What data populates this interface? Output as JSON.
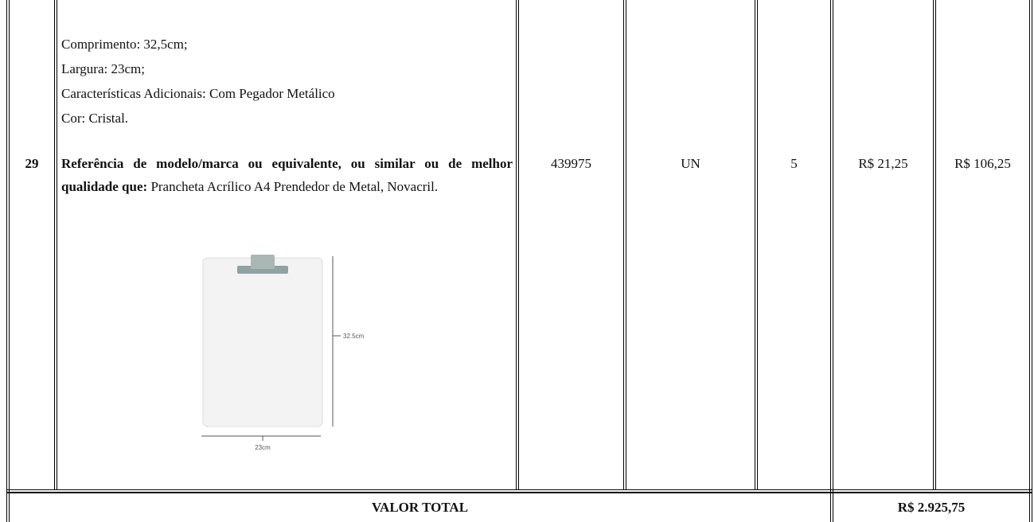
{
  "table": {
    "rows": [
      {
        "item": "29",
        "description": {
          "lines": [
            "Comprimento: 32,5cm;",
            "Largura: 23cm;",
            "Características Adicionais: Com Pegador Metálico",
            "Cor: Cristal."
          ],
          "reference_label": "Referência de modelo/marca ou equivalente, ou similar ou de melhor qualidade que:",
          "reference_text": "Prancheta Acrílico A4 Prendedor de Metal, Novacril.",
          "image": {
            "height_label": "32.5cm",
            "width_label": "23cm"
          }
        },
        "code": "439975",
        "unit": "UN",
        "quantity": "5",
        "unit_price": "R$ 21,25",
        "total_price": "R$ 106,25"
      }
    ],
    "total": {
      "label": "VALOR TOTAL",
      "value": "R$ 2.925,75"
    }
  }
}
